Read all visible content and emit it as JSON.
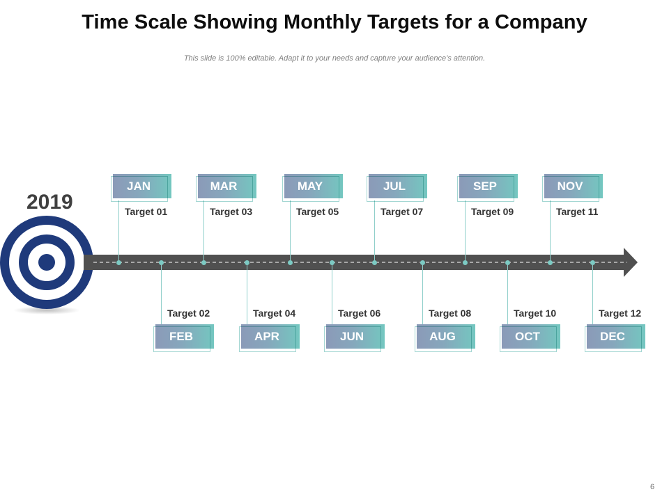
{
  "slide": {
    "title": "Time Scale Showing Monthly Targets for a Company",
    "subtitle": "This slide is 100% editable. Adapt it to your needs and capture your audience’s attention.",
    "page_number": "6",
    "year": "2019"
  },
  "colors": {
    "target_icon": "#1f3a7b",
    "arrow": "#505050",
    "connector": "#8fcfca",
    "box_gradient_start": "#8b9ab8",
    "box_gradient_end": "#74c7c0",
    "label_text": "#333333"
  },
  "timeline": {
    "months": [
      {
        "month": "JAN",
        "target": "Target 01",
        "position": "top"
      },
      {
        "month": "FEB",
        "target": "Target 02",
        "position": "bottom"
      },
      {
        "month": "MAR",
        "target": "Target 03",
        "position": "top"
      },
      {
        "month": "APR",
        "target": "Target 04",
        "position": "bottom"
      },
      {
        "month": "MAY",
        "target": "Target 05",
        "position": "top"
      },
      {
        "month": "JUN",
        "target": "Target 06",
        "position": "bottom"
      },
      {
        "month": "JUL",
        "target": "Target 07",
        "position": "top"
      },
      {
        "month": "AUG",
        "target": "Target 08",
        "position": "bottom"
      },
      {
        "month": "SEP",
        "target": "Target 09",
        "position": "top"
      },
      {
        "month": "OCT",
        "target": "Target 10",
        "position": "bottom"
      },
      {
        "month": "NOV",
        "target": "Target 11",
        "position": "top"
      },
      {
        "month": "DEC",
        "target": "Target 12",
        "position": "bottom"
      }
    ]
  }
}
